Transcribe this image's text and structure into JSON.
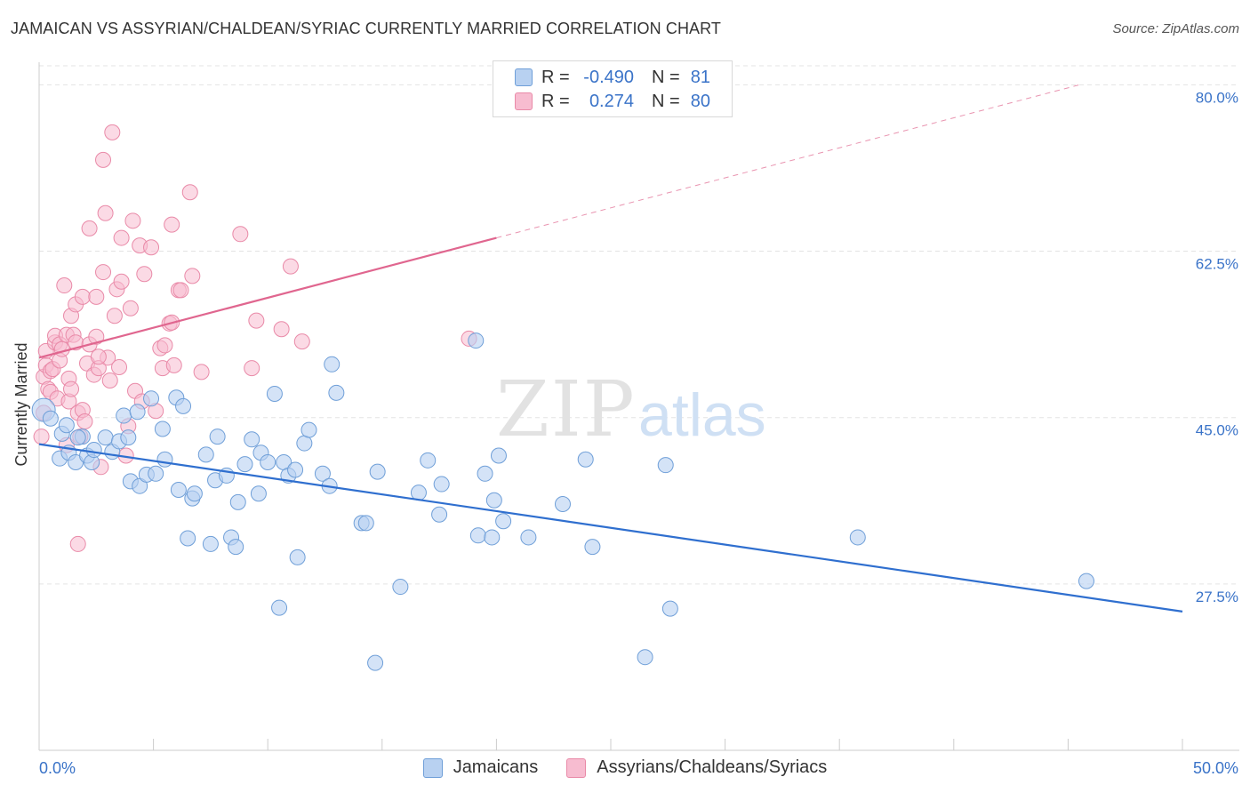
{
  "title": "JAMAICAN VS ASSYRIAN/CHALDEAN/SYRIAC CURRENTLY MARRIED CORRELATION CHART",
  "source": "Source: ZipAtlas.com",
  "watermark": {
    "zip": "ZIP",
    "atlas": "atlas"
  },
  "colors": {
    "blue_fill": "#b8d1f1",
    "blue_stroke": "#6f9fd8",
    "blue_line": "#2f6fcf",
    "pink_fill": "#f7bcd0",
    "pink_stroke": "#e98aa8",
    "pink_line": "#e0668f",
    "axis_text": "#3a73c8",
    "grid": "#e3e3e3"
  },
  "legend": {
    "rows": [
      {
        "r_label": "R =",
        "r_value": "-0.490",
        "n_label": "N =",
        "n_value": "81"
      },
      {
        "r_label": "R =",
        "r_value": "0.274",
        "n_label": "N =",
        "n_value": "80"
      }
    ]
  },
  "bottom_legend": [
    "Jamaicans",
    "Assyrians/Chaldeans/Syriacs"
  ],
  "chart_data": {
    "type": "scatter",
    "title": "JAMAICAN VS ASSYRIAN/CHALDEAN/SYRIAC CURRENTLY MARRIED CORRELATION CHART",
    "xlabel": "",
    "ylabel": "Currently Married",
    "xlim": [
      0,
      50
    ],
    "ylim": [
      10,
      82
    ],
    "x_tick_labels": [
      "0.0%",
      "50.0%"
    ],
    "y_ticks": [
      27.5,
      45.0,
      62.5,
      80.0
    ],
    "y_tick_labels": [
      "27.5%",
      "45.0%",
      "62.5%",
      "80.0%"
    ],
    "grid": true,
    "legend_position": "top-center",
    "series": [
      {
        "name": "Jamaicans",
        "r": -0.49,
        "n": 81,
        "trend": {
          "x0": 0,
          "y0": 42.2,
          "x1": 50,
          "y1": 24.6
        },
        "points": [
          [
            0.2,
            45.8
          ],
          [
            0.5,
            44.9
          ],
          [
            0.9,
            40.7
          ],
          [
            1.0,
            43.3
          ],
          [
            1.2,
            44.2
          ],
          [
            1.3,
            41.3
          ],
          [
            1.6,
            40.3
          ],
          [
            1.9,
            43.0
          ],
          [
            2.1,
            41.0
          ],
          [
            2.3,
            40.3
          ],
          [
            2.4,
            41.6
          ],
          [
            2.9,
            42.9
          ],
          [
            3.2,
            41.4
          ],
          [
            3.5,
            42.5
          ],
          [
            3.7,
            45.2
          ],
          [
            3.9,
            42.9
          ],
          [
            4.0,
            38.3
          ],
          [
            4.3,
            45.6
          ],
          [
            4.4,
            37.8
          ],
          [
            4.7,
            39.0
          ],
          [
            4.9,
            47.0
          ],
          [
            5.1,
            39.1
          ],
          [
            5.4,
            43.8
          ],
          [
            5.5,
            40.6
          ],
          [
            6.0,
            47.1
          ],
          [
            6.1,
            37.4
          ],
          [
            6.3,
            46.2
          ],
          [
            6.5,
            32.3
          ],
          [
            6.7,
            36.5
          ],
          [
            6.8,
            37.0
          ],
          [
            7.3,
            41.1
          ],
          [
            7.5,
            31.7
          ],
          [
            7.7,
            38.4
          ],
          [
            7.8,
            43.0
          ],
          [
            8.2,
            38.9
          ],
          [
            8.4,
            32.4
          ],
          [
            8.6,
            31.4
          ],
          [
            8.7,
            36.1
          ],
          [
            9.0,
            40.1
          ],
          [
            9.3,
            42.7
          ],
          [
            9.6,
            37.0
          ],
          [
            9.7,
            41.3
          ],
          [
            10.0,
            40.3
          ],
          [
            10.3,
            47.5
          ],
          [
            10.5,
            25.0
          ],
          [
            10.7,
            40.3
          ],
          [
            10.9,
            38.9
          ],
          [
            11.2,
            39.5
          ],
          [
            11.3,
            30.3
          ],
          [
            11.6,
            42.3
          ],
          [
            11.8,
            43.7
          ],
          [
            12.4,
            39.1
          ],
          [
            12.7,
            37.8
          ],
          [
            12.8,
            50.6
          ],
          [
            13.0,
            47.6
          ],
          [
            14.1,
            33.9
          ],
          [
            14.3,
            33.9
          ],
          [
            14.7,
            19.2
          ],
          [
            14.8,
            39.3
          ],
          [
            15.8,
            27.2
          ],
          [
            16.6,
            37.1
          ],
          [
            17.0,
            40.5
          ],
          [
            17.5,
            34.8
          ],
          [
            17.6,
            38.0
          ],
          [
            19.1,
            53.1
          ],
          [
            19.2,
            32.6
          ],
          [
            19.5,
            39.1
          ],
          [
            19.8,
            32.4
          ],
          [
            19.9,
            36.3
          ],
          [
            20.1,
            41.0
          ],
          [
            20.3,
            34.1
          ],
          [
            21.4,
            32.4
          ],
          [
            22.9,
            35.9
          ],
          [
            23.9,
            40.6
          ],
          [
            24.2,
            31.4
          ],
          [
            26.5,
            19.8
          ],
          [
            27.4,
            40.0
          ],
          [
            27.6,
            24.9
          ],
          [
            35.8,
            32.4
          ],
          [
            45.8,
            27.8
          ],
          [
            1.7,
            42.9
          ]
        ]
      },
      {
        "name": "Assyrians/Chaldeans/Syriacs",
        "r": 0.274,
        "n": 80,
        "trend": {
          "x0": 0,
          "y0": 51.3,
          "x1": 20,
          "y1": 63.9
        },
        "trend_dashed": {
          "x0": 20,
          "y0": 63.9,
          "x1": 45.5,
          "y1": 80.0
        },
        "points": [
          [
            0.1,
            43.0
          ],
          [
            0.2,
            45.5
          ],
          [
            0.2,
            49.3
          ],
          [
            0.3,
            52.0
          ],
          [
            0.3,
            50.5
          ],
          [
            0.4,
            48.0
          ],
          [
            0.5,
            49.9
          ],
          [
            0.5,
            47.7
          ],
          [
            0.6,
            50.1
          ],
          [
            0.7,
            52.9
          ],
          [
            0.7,
            53.6
          ],
          [
            0.8,
            47.0
          ],
          [
            0.9,
            52.7
          ],
          [
            0.9,
            51.0
          ],
          [
            1.0,
            52.2
          ],
          [
            1.1,
            58.9
          ],
          [
            1.2,
            53.7
          ],
          [
            1.3,
            46.7
          ],
          [
            1.3,
            49.1
          ],
          [
            1.4,
            48.0
          ],
          [
            1.4,
            55.7
          ],
          [
            1.5,
            53.7
          ],
          [
            1.6,
            52.9
          ],
          [
            1.6,
            56.9
          ],
          [
            1.7,
            45.5
          ],
          [
            1.8,
            43.0
          ],
          [
            1.9,
            45.8
          ],
          [
            1.9,
            57.7
          ],
          [
            2.0,
            44.6
          ],
          [
            2.1,
            50.7
          ],
          [
            2.2,
            52.7
          ],
          [
            2.2,
            64.9
          ],
          [
            2.4,
            49.5
          ],
          [
            2.5,
            57.7
          ],
          [
            2.5,
            53.5
          ],
          [
            2.6,
            50.2
          ],
          [
            2.7,
            39.8
          ],
          [
            2.8,
            72.1
          ],
          [
            2.8,
            60.3
          ],
          [
            2.9,
            66.5
          ],
          [
            3.0,
            51.3
          ],
          [
            3.1,
            48.9
          ],
          [
            3.2,
            75.0
          ],
          [
            3.3,
            55.7
          ],
          [
            3.4,
            58.5
          ],
          [
            3.5,
            50.3
          ],
          [
            3.6,
            59.3
          ],
          [
            3.6,
            63.9
          ],
          [
            3.8,
            41.0
          ],
          [
            3.9,
            44.1
          ],
          [
            4.0,
            56.5
          ],
          [
            4.1,
            65.7
          ],
          [
            4.2,
            47.8
          ],
          [
            4.4,
            63.1
          ],
          [
            4.5,
            46.7
          ],
          [
            4.6,
            60.1
          ],
          [
            4.9,
            62.9
          ],
          [
            5.1,
            45.7
          ],
          [
            5.3,
            52.3
          ],
          [
            5.4,
            50.2
          ],
          [
            5.5,
            52.6
          ],
          [
            5.7,
            54.9
          ],
          [
            5.8,
            55.0
          ],
          [
            5.8,
            65.3
          ],
          [
            5.9,
            50.5
          ],
          [
            6.1,
            58.4
          ],
          [
            6.2,
            58.4
          ],
          [
            6.6,
            68.7
          ],
          [
            6.7,
            59.9
          ],
          [
            7.1,
            49.8
          ],
          [
            8.8,
            64.3
          ],
          [
            9.3,
            50.2
          ],
          [
            9.5,
            55.2
          ],
          [
            10.6,
            54.3
          ],
          [
            11.0,
            60.9
          ],
          [
            11.5,
            53.0
          ],
          [
            18.8,
            53.3
          ],
          [
            1.7,
            31.7
          ],
          [
            1.2,
            42.1
          ],
          [
            2.6,
            51.4
          ]
        ]
      }
    ]
  }
}
